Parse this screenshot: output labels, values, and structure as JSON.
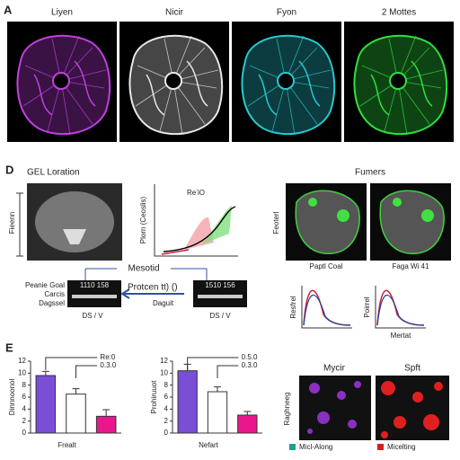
{
  "panel_a": {
    "label": "A",
    "titles": [
      "Liyen",
      "Nicir",
      "Fyon",
      "2 Mottes"
    ]
  },
  "panel_d": {
    "label": "D",
    "title": "GEL Loration",
    "ylabel": "Fieenn",
    "plot_label": "Plorn (Ceoslis)",
    "plot_legend": "ReʼiO",
    "arrow_label": "Mesotid",
    "gel_left": {
      "lanes": "1110 158",
      "labels": [
        "Peanie Goal",
        "Carcis",
        "Dagssel"
      ],
      "bottom": "DS / V"
    },
    "gel_right": {
      "title": "Protcen tt) ()",
      "lanes": "1510 156",
      "label": "Daguit",
      "bottom": "DS / V"
    },
    "right_title": "Fumers",
    "right_ylabel": "Feoterl",
    "image_labels": [
      "Paptl Coal",
      "Faga Wi 41"
    ],
    "small_plot_ylabels": [
      "Resfrel",
      "Poirrel"
    ],
    "small_plot_xlabel": "Mertat"
  },
  "panel_e": {
    "label": "E",
    "images": [
      "Mycir",
      "Spft"
    ],
    "image_ylabel": "Raghneeg",
    "legend": [
      "Micl-Along",
      "Micelting"
    ]
  },
  "chart_data": [
    {
      "type": "bar",
      "categories": [
        null,
        null,
        null
      ],
      "values": [
        9.6,
        6.5,
        2.8
      ],
      "errors": [
        0.7,
        0.9,
        1.1
      ],
      "colors": [
        "#7a4fd6",
        "#ffffff",
        "#e8188c"
      ],
      "xlabel": "Frealt",
      "ylabel": "Dinnnoonol",
      "ylim": [
        0,
        12
      ],
      "yticks": [
        0,
        2,
        4,
        6,
        8,
        10,
        12
      ],
      "annotations": [
        "Re:0",
        "0.3.0"
      ]
    },
    {
      "type": "bar",
      "categories": [
        null,
        null,
        null
      ],
      "values": [
        10.4,
        6.9,
        3.0
      ],
      "errors": [
        1.1,
        0.8,
        0.6
      ],
      "colors": [
        "#7a4fd6",
        "#ffffff",
        "#e8188c"
      ],
      "xlabel": "Nefart",
      "ylabel": "Prohiruuot",
      "ylim": [
        0,
        12
      ],
      "yticks": [
        0,
        2,
        4,
        6,
        8,
        10,
        12
      ],
      "annotations": [
        "0.5.0",
        "0.3.0"
      ]
    }
  ]
}
